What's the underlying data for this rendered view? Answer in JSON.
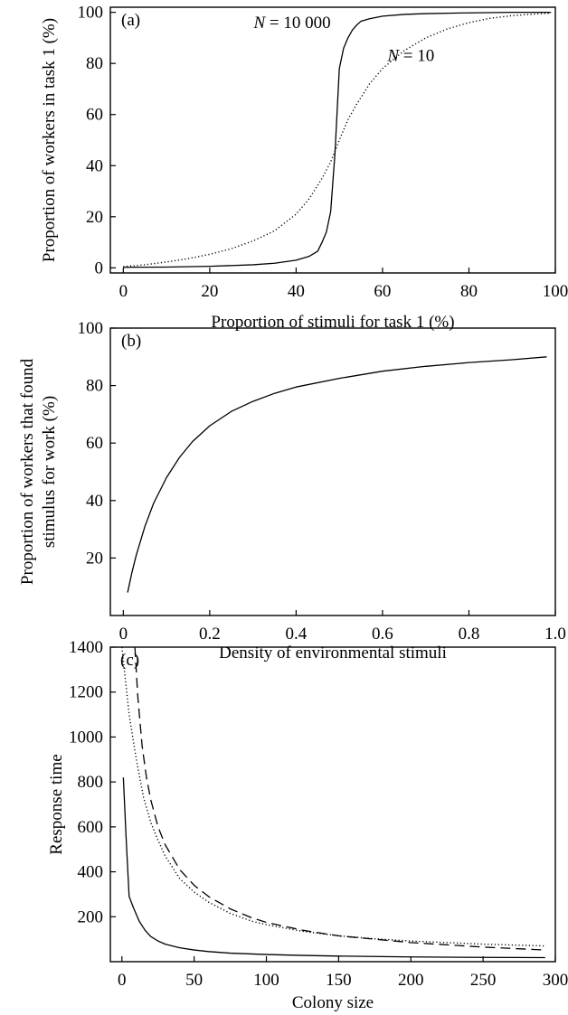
{
  "chart_data": [
    {
      "type": "line",
      "panel_label": "(a)",
      "xlabel": "Proportion of stimuli for task 1 (%)",
      "ylabel": "Proportion of workers in task 1 (%)",
      "xlim": [
        -3,
        100
      ],
      "ylim": [
        -2,
        102
      ],
      "xticks": [
        0,
        20,
        40,
        60,
        80,
        100
      ],
      "yticks": [
        0,
        20,
        40,
        60,
        80,
        100
      ],
      "series": [
        {
          "name": "N = 10 000",
          "style": "solid",
          "x": [
            0,
            10,
            20,
            30,
            35,
            40,
            43,
            45,
            46,
            47,
            48,
            49,
            50,
            51,
            52,
            53,
            54,
            55,
            57,
            60,
            65,
            70,
            80,
            90,
            99
          ],
          "y": [
            0.2,
            0.3,
            0.6,
            1.2,
            1.8,
            3,
            4.5,
            6.5,
            10,
            14,
            22,
            45,
            78,
            86,
            90,
            93,
            95,
            96.5,
            97.5,
            98.5,
            99.2,
            99.5,
            99.8,
            100,
            100
          ]
        },
        {
          "name": "N = 10",
          "style": "dotted",
          "x": [
            0,
            5,
            10,
            15,
            20,
            25,
            30,
            35,
            40,
            43,
            46,
            48,
            50,
            52,
            54,
            57,
            60,
            65,
            70,
            75,
            80,
            85,
            90,
            95,
            99
          ],
          "y": [
            0.5,
            1.2,
            2.3,
            3.6,
            5.3,
            7.5,
            10.5,
            14.5,
            21,
            27,
            35,
            41.5,
            50,
            58,
            64,
            72,
            78,
            85,
            90,
            93.5,
            96,
            97.7,
            98.7,
            99.3,
            99.7
          ]
        }
      ],
      "annotations": [
        {
          "text_pre": "N",
          "text_post": " = 10 000",
          "x": 48,
          "y": 96
        },
        {
          "text_pre": "N",
          "text_post": " = 10",
          "x": 72,
          "y": 83
        }
      ]
    },
    {
      "type": "line",
      "panel_label": "(b)",
      "xlabel": "Density of environmental stimuli",
      "ylabel_lines": [
        "Proportion of workers that found",
        "stimulus for work (%)"
      ],
      "xlim": [
        -0.03,
        1.0
      ],
      "ylim": [
        0,
        100
      ],
      "xticks": [
        0,
        0.2,
        0.4,
        0.6,
        0.8,
        1.0
      ],
      "xtick_labels": [
        "0",
        "0.2",
        "0.4",
        "0.6",
        "0.8",
        "1.0"
      ],
      "yticks": [
        20,
        40,
        60,
        80,
        100
      ],
      "series": [
        {
          "style": "solid",
          "x": [
            0.01,
            0.02,
            0.03,
            0.05,
            0.07,
            0.1,
            0.13,
            0.16,
            0.2,
            0.25,
            0.3,
            0.35,
            0.4,
            0.5,
            0.6,
            0.7,
            0.8,
            0.9,
            0.98
          ],
          "y": [
            8,
            15,
            21,
            31,
            39,
            48,
            55,
            60.5,
            66,
            71,
            74.5,
            77.3,
            79.5,
            82.5,
            85,
            86.7,
            88,
            89,
            90
          ]
        }
      ]
    },
    {
      "type": "line",
      "panel_label": "(c)",
      "xlabel": "Colony size",
      "ylabel": "Response time",
      "xlim": [
        -8,
        300
      ],
      "ylim": [
        0,
        1400
      ],
      "xticks": [
        0,
        50,
        100,
        150,
        200,
        250,
        300
      ],
      "yticks": [
        200,
        400,
        600,
        800,
        1000,
        1200,
        1400
      ],
      "series": [
        {
          "style": "solid",
          "x": [
            1,
            3,
            5,
            8,
            12,
            16,
            20,
            25,
            30,
            40,
            50,
            60,
            75,
            100,
            125,
            150,
            200,
            250,
            293
          ],
          "y": [
            820,
            540,
            290,
            240,
            180,
            140,
            112,
            92,
            78,
            62,
            52,
            45,
            38,
            32,
            28,
            25,
            21,
            19,
            18
          ]
        },
        {
          "style": "dotted",
          "x": [
            0,
            5,
            10,
            15,
            20,
            25,
            30,
            40,
            50,
            60,
            75,
            90,
            100,
            125,
            150,
            175,
            200,
            250,
            293
          ],
          "y": [
            1400,
            1100,
            900,
            730,
            620,
            540,
            470,
            370,
            310,
            265,
            215,
            180,
            165,
            135,
            115,
            102,
            92,
            78,
            70
          ]
        },
        {
          "style": "dashed",
          "x": [
            9,
            11,
            14,
            17,
            20,
            25,
            30,
            40,
            50,
            60,
            75,
            90,
            100,
            125,
            150,
            175,
            200,
            250,
            293
          ],
          "y": [
            1400,
            1180,
            960,
            820,
            720,
            600,
            520,
            410,
            340,
            290,
            235,
            195,
            175,
            140,
            115,
            100,
            85,
            65,
            52
          ]
        }
      ]
    }
  ]
}
